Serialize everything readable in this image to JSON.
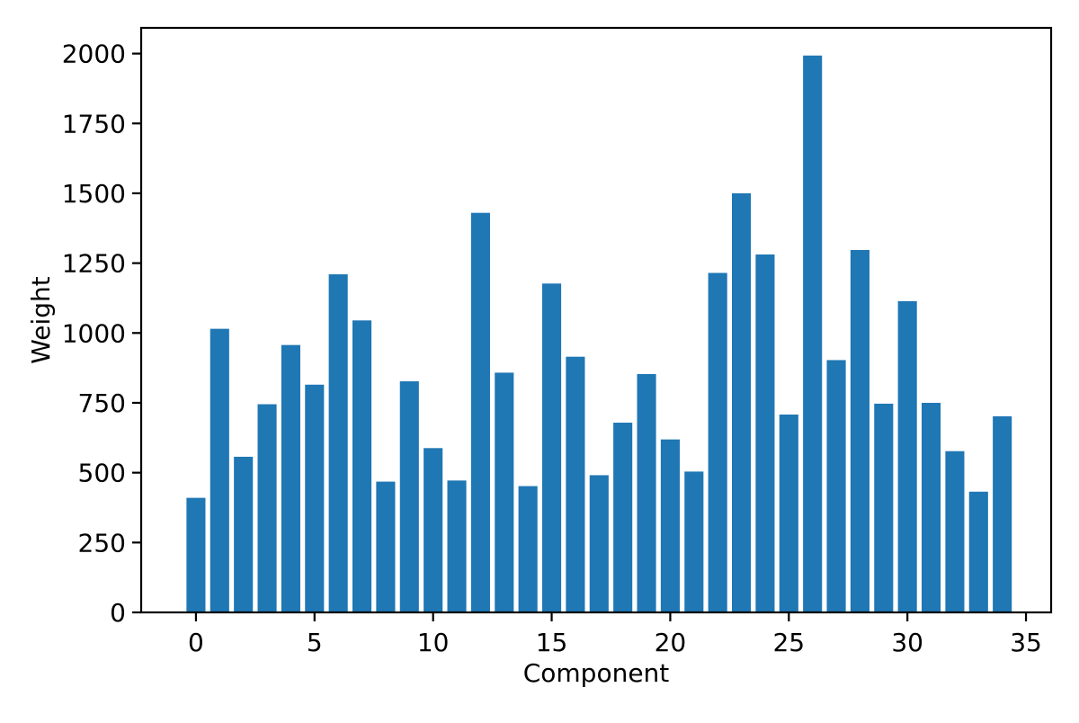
{
  "figure": {
    "background": "#ffffff",
    "text_color": "#000000"
  },
  "chart_data": {
    "type": "bar",
    "xlabel": "Component",
    "ylabel": "Weight",
    "x": [
      0,
      1,
      2,
      3,
      4,
      5,
      6,
      7,
      8,
      9,
      10,
      11,
      12,
      13,
      14,
      15,
      16,
      17,
      18,
      19,
      20,
      21,
      22,
      23,
      24,
      25,
      26,
      27,
      28,
      29,
      30,
      31,
      32,
      33,
      34
    ],
    "values": [
      410,
      1015,
      557,
      745,
      957,
      815,
      1210,
      1045,
      468,
      827,
      588,
      472,
      1430,
      858,
      452,
      1177,
      915,
      491,
      679,
      853,
      619,
      504,
      1215,
      1500,
      1281,
      708,
      1993,
      903,
      1297,
      747,
      1114,
      750,
      577,
      432,
      702
    ],
    "bar_color": "#1f77b4",
    "bar_width": 0.8,
    "xticks": [
      0,
      5,
      10,
      15,
      20,
      25,
      30,
      35
    ],
    "yticks": [
      0,
      250,
      500,
      750,
      1000,
      1250,
      1500,
      1750,
      2000
    ],
    "xlim": [
      -2.31,
      36.06
    ],
    "ylim": [
      0,
      2092
    ],
    "grid": false,
    "legend": "none",
    "title": ""
  }
}
